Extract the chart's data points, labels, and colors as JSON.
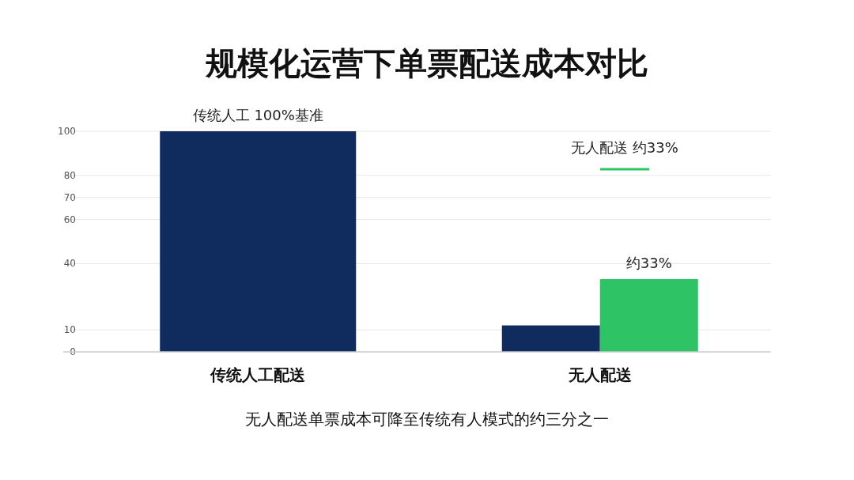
{
  "chart_data": {
    "type": "bar",
    "title": "规模化运营下单票配送成本对比",
    "categories": [
      "传统人工配送",
      "无人配送"
    ],
    "series": [
      {
        "color": "#102c5e",
        "values": [
          100,
          12
        ],
        "value_labels": [
          "传统人工 100%基准",
          null
        ]
      },
      {
        "name": "无人配送 约33%",
        "color": "#2ec466",
        "values": [
          null,
          33
        ],
        "value_labels": [
          null,
          "约33%"
        ]
      }
    ],
    "ylim": [
      0,
      100
    ],
    "yticks": [
      0,
      10,
      40,
      60,
      70,
      80,
      100
    ],
    "grid": "y",
    "legend": "top right",
    "annotations": [
      "无人配送单票成本可降至传统有人模式的约三分之一"
    ]
  }
}
